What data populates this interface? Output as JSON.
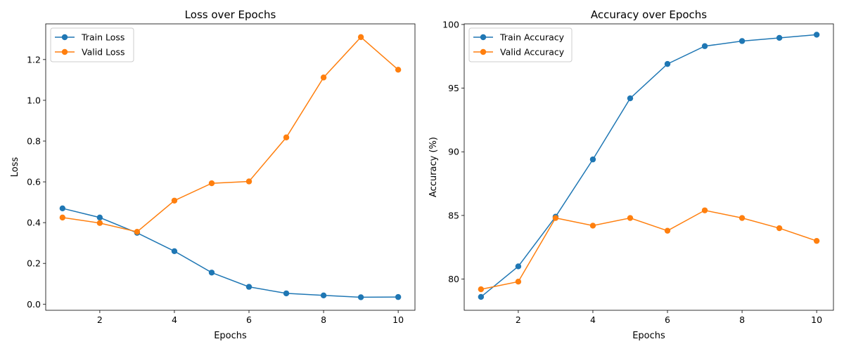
{
  "chart_data": [
    {
      "type": "line",
      "title": "Loss over Epochs",
      "xlabel": "Epochs",
      "ylabel": "Loss",
      "xlim": [
        0.55,
        10.45
      ],
      "ylim": [
        -0.03,
        1.375
      ],
      "xticks": [
        2,
        4,
        6,
        8,
        10
      ],
      "yticks": [
        0.0,
        0.2,
        0.4,
        0.6,
        0.8,
        1.0,
        1.2
      ],
      "ytick_labels": [
        "0.0",
        "0.2",
        "0.4",
        "0.6",
        "0.8",
        "1.0",
        "1.2"
      ],
      "grid": false,
      "legend_position": "top-left",
      "x": [
        1,
        2,
        3,
        4,
        5,
        6,
        7,
        8,
        9,
        10
      ],
      "series": [
        {
          "name": "Train Loss",
          "color": "#1f77b4",
          "values": [
            0.47,
            0.425,
            0.35,
            0.26,
            0.155,
            0.085,
            0.053,
            0.043,
            0.034,
            0.035
          ]
        },
        {
          "name": "Valid Loss",
          "color": "#ff7f0e",
          "values": [
            0.425,
            0.398,
            0.355,
            0.508,
            0.593,
            0.602,
            0.818,
            1.112,
            1.31,
            1.15
          ]
        }
      ]
    },
    {
      "type": "line",
      "title": "Accuracy over Epochs",
      "xlabel": "Epochs",
      "ylabel": "Accuracy (%)",
      "xlim": [
        0.55,
        10.45
      ],
      "ylim": [
        77.55,
        100.05
      ],
      "xticks": [
        2,
        4,
        6,
        8,
        10
      ],
      "yticks": [
        80,
        85,
        90,
        95,
        100
      ],
      "ytick_labels": [
        "80",
        "85",
        "90",
        "95",
        "100"
      ],
      "grid": false,
      "legend_position": "top-left",
      "x": [
        1,
        2,
        3,
        4,
        5,
        6,
        7,
        8,
        9,
        10
      ],
      "series": [
        {
          "name": "Train Accuracy",
          "color": "#1f77b4",
          "values": [
            78.6,
            81.0,
            84.9,
            89.4,
            94.2,
            96.9,
            98.3,
            98.7,
            98.95,
            99.2
          ]
        },
        {
          "name": "Valid Accuracy",
          "color": "#ff7f0e",
          "values": [
            79.2,
            79.8,
            84.8,
            84.2,
            84.8,
            83.8,
            85.4,
            84.8,
            84.0,
            83.0
          ]
        }
      ]
    }
  ]
}
